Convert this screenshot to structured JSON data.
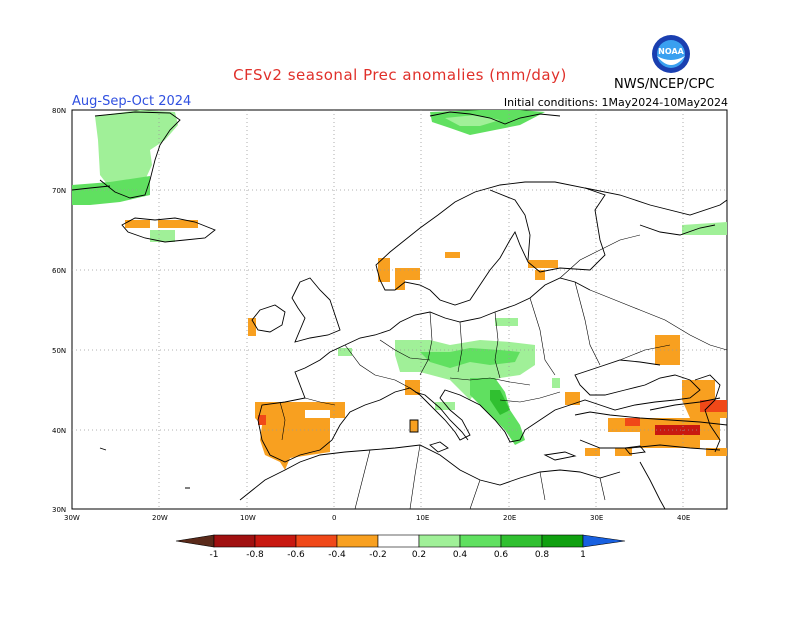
{
  "title": "CFSv2 seasonal Prec anomalies (mm/day)",
  "period": "Aug-Sep-Oct 2024",
  "initial_conditions": "Initial conditions: 1May2024-10May2024",
  "agency": "NWS/NCEP/CPC",
  "logo_text": "NOAA",
  "colors": {
    "ocean": "#ffffff",
    "coast": "#000000",
    "grid": "#999999",
    "neg_below_1": "#5a2a1a",
    "neg_08_1": "#a01010",
    "neg_06_08": "#c81810",
    "neg_04_06": "#f04818",
    "neg_02_04": "#f8a020",
    "pos_02_04": "#a0f098",
    "pos_04_06": "#60e060",
    "pos_06_08": "#30c030",
    "pos_08_1": "#10a010",
    "pos_above_1": "#1860e0"
  },
  "axes": {
    "lon_labels": [
      "30W",
      "20W",
      "10W",
      "0",
      "10E",
      "20E",
      "30E",
      "40E"
    ],
    "lat_labels": [
      "80N",
      "70N",
      "60N",
      "50N",
      "40N",
      "30N"
    ]
  },
  "colorbar": {
    "labels": [
      "-1",
      "-0.8",
      "-0.6",
      "-0.4",
      "-0.2",
      "0.2",
      "0.4",
      "0.6",
      "0.8",
      "1"
    ]
  }
}
